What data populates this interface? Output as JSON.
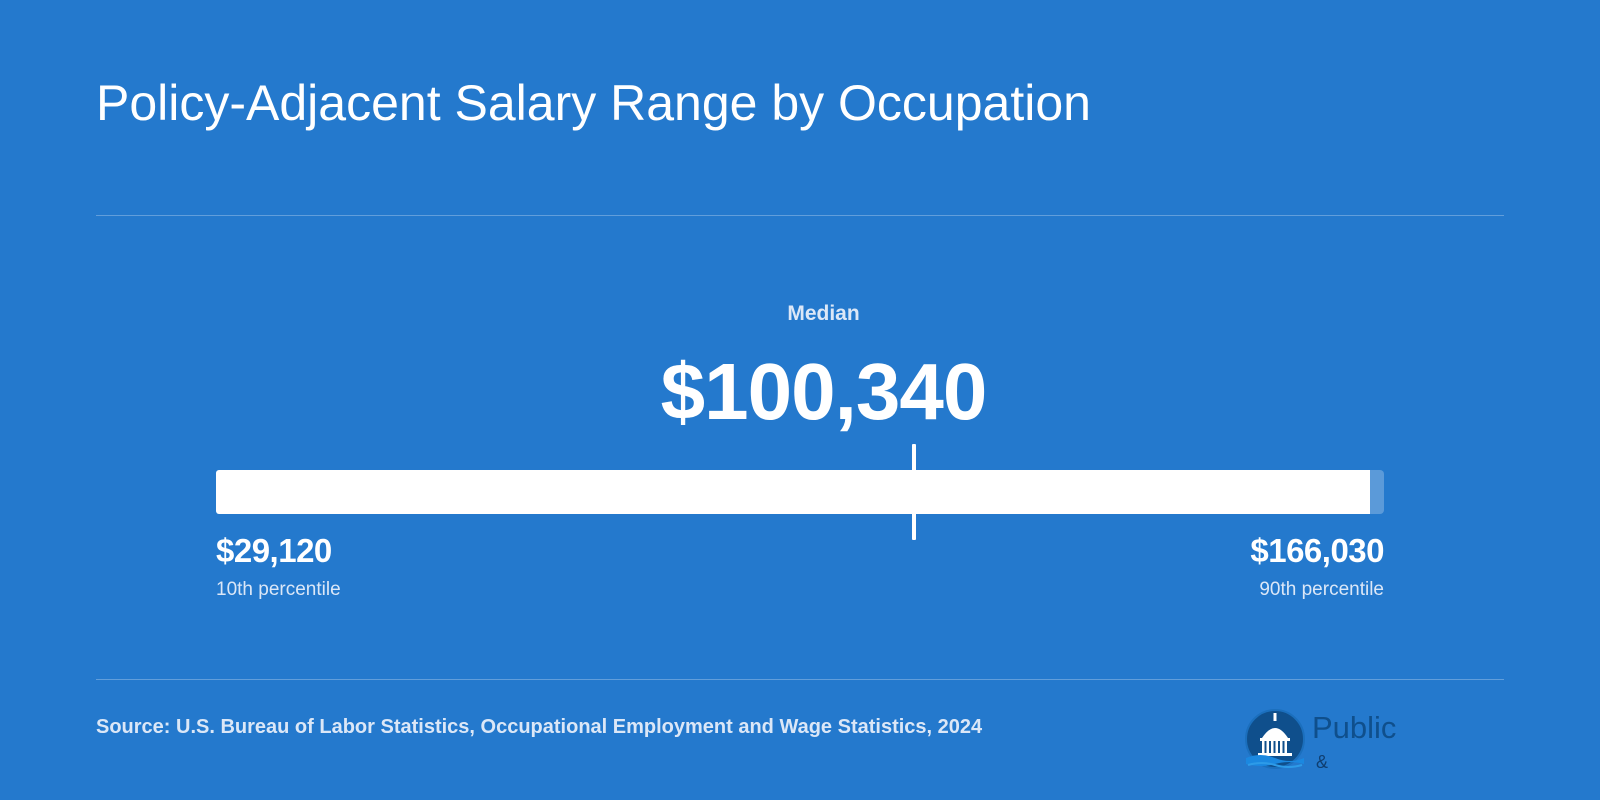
{
  "title": "Policy-Adjacent Salary Range by Occupation",
  "chart_data": {
    "type": "range_bar",
    "min": 29120,
    "median": 100340,
    "max": 166030,
    "min_label": "10th percentile",
    "median_label": "Median",
    "max_label": "90th percentile",
    "min_text": "$29,120",
    "median_text": "$100,340",
    "max_text": "$166,030",
    "scale_max": 168000
  },
  "source": "Source: U.S. Bureau of Labor Statistics, Occupational Employment and Wage Statistics, 2024",
  "logo": {
    "word": "Public",
    "sub_left": "",
    "amp": "&",
    "sub_right": ""
  },
  "colors": {
    "background": "#2479cd",
    "bar": "#ffffff",
    "muted_text": "#dbe7f7"
  }
}
